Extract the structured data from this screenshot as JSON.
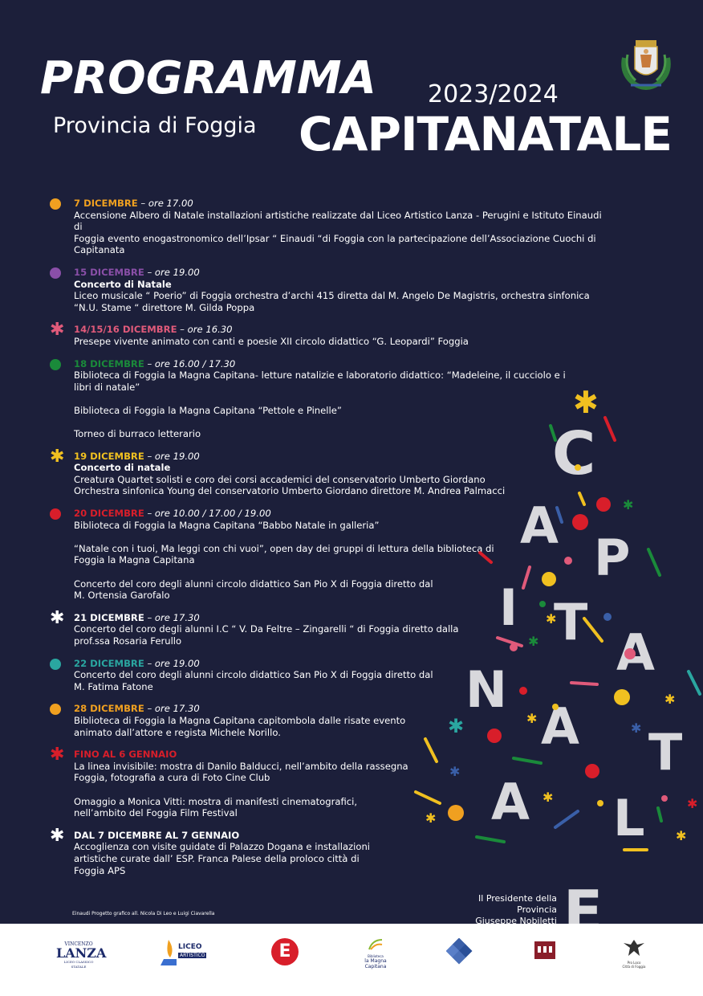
{
  "header": {
    "title": "PROGRAMMA",
    "year": "2023/2024",
    "province": "Provincia di Foggia",
    "brand": "CAPITANATALE"
  },
  "colors": {
    "background": "#1c1f3a",
    "orange": "#f0a020",
    "purple": "#8a4fa8",
    "pink": "#e05a7a",
    "green": "#1a8a3a",
    "yellow": "#f0c020",
    "red": "#d81e2a",
    "teal": "#2aa6a0",
    "white": "#ffffff"
  },
  "events": [
    {
      "icon": "orange-dot-icon",
      "date": "7 DICEMBRE",
      "time": " – ore 17.00",
      "lines": [
        "Accensione Albero di Natale installazioni artistiche realizzate dal  Liceo Artistico Lanza - Perugini e Istituto Einaudi di",
        "Foggia evento enogastronomico dell’Ipsar “ Einaudi “di Foggia  con la partecipazione dell’Associazione Cuochi di",
        "Capitanata"
      ]
    },
    {
      "icon": "purple-dot-icon",
      "date": "15 DICEMBRE",
      "time": " – ore 19.00",
      "subtitle": "Concerto di Natale",
      "lines": [
        "Liceo musicale “ Poerio” di Foggia  orchestra d’archi 415 diretta dal M. Angelo De Magistris, orchestra sinfonica",
        "“N.U. Stame “ direttore M. Gilda Poppa"
      ]
    },
    {
      "icon": "pink-star-icon",
      "date": "14/15/16  DICEMBRE",
      "time": " – ore 16.30",
      "lines": [
        "Presepe vivente animato con canti e poesie XII circolo didattico “G. Leopardi” Foggia"
      ]
    },
    {
      "icon": "green-dot-icon",
      "date": "18 DICEMBRE",
      "time": " – ore 16.00 / 17.30",
      "lines": [
        "Biblioteca di Foggia la Magna Capitana- letture natalizie e laboratorio didattico: “Madeleine, il cucciolo e i",
        "libri di natale”"
      ],
      "extra": [
        "Biblioteca di Foggia la Magna Capitana “Pettole e Pinelle”",
        "Torneo di burraco letterario"
      ]
    },
    {
      "icon": "yellow-star-icon",
      "date": "19 DICEMBRE",
      "time": " – ore 19.00",
      "subtitle": "Concerto di natale",
      "lines": [
        "Creatura Quartet solisti e coro dei corsi accademici del conservatorio Umberto Giordano",
        "Orchestra sinfonica Young del conservatorio Umberto Giordano  direttore M. Andrea Palmacci"
      ]
    },
    {
      "icon": "red-dot-icon",
      "date": "20 DICEMBRE",
      "time": " – ore 10.00 / 17.00 / 19.00",
      "lines": [
        "Biblioteca di Foggia la Magna Capitana “Babbo Natale in galleria”"
      ],
      "extra": [
        "“Natale con i tuoi, Ma leggi con chi vuoi”, open day dei gruppi di lettura della biblioteca di|Foggia la Magna Capitana",
        "Concerto del coro degli alunni circolo didattico San Pio X di Foggia diretto dal|M. Ortensia Garofalo"
      ]
    },
    {
      "icon": "white-star-icon",
      "date": "21 DICEMBRE",
      "time": " – ore 17.30",
      "lines": [
        "Concerto del coro degli alunni  I.C “ V. Da Feltre – Zingarelli “ di Foggia diretto dalla",
        "prof.ssa  Rosaria Ferullo"
      ]
    },
    {
      "icon": "teal-dot-icon",
      "date": "22 DICEMBRE",
      "time": " – ore 19.00",
      "lines": [
        "Concerto del coro degli alunni circolo didattico San Pio X di Foggia diretto dal",
        "M. Fatima Fatone"
      ]
    },
    {
      "icon": "orange-dot-icon",
      "date": "28 DICEMBRE",
      "time": " – ore 17.30",
      "lines": [
        "Biblioteca di Foggia la Magna Capitana capitombola dalle risate evento",
        "animato dall’attore e regista Michele Norillo."
      ]
    },
    {
      "icon": "red-star-icon",
      "date": "FINO AL 6 GENNAIO",
      "time": "",
      "lines": [
        "La linea invisibile: mostra di Danilo Balducci, nell’ambito della rassegna",
        "Foggia, fotografia a cura di Foto Cine Club"
      ],
      "extra": [
        "Omaggio a Monica Vitti: mostra di manifesti cinematografici,|nell’ambito del Foggia Film Festival"
      ]
    },
    {
      "icon": "white-star-icon",
      "date": "DAL 7 DICEMBRE AL 7 GENNAIO",
      "time": "",
      "lines": [
        "Accoglienza con visite guidate di Palazzo Dogana e installazioni",
        "artistiche curate dall’ ESP. Franca Palese della proloco città di",
        "Foggia APS"
      ]
    }
  ],
  "signature": {
    "role": "Il Presidente della Provincia",
    "name": "Giuseppe Nobiletti"
  },
  "credits": "Einaudi Progetto grafico all. Nicola Di Leo e Luigi Ciavarella",
  "tree_letters": [
    "C",
    "A",
    "P",
    "I",
    "T",
    "A",
    "N",
    "A",
    "T",
    "A",
    "L",
    "E"
  ],
  "logos": {
    "lanza_top": "VINCENZO",
    "lanza_main": "LANZA",
    "lanza_sub": "LICEO CLASSICO STATALE",
    "liceo_label": "LICEO",
    "liceo_sub": "ARTISTICO",
    "einaudi_letter": "E",
    "magna_top": "Biblioteca",
    "magna_main": "la Magna",
    "magna_sub": "Capitana",
    "proloco_top": "Pro Loco",
    "proloco_sub": "Città di Foggia"
  }
}
